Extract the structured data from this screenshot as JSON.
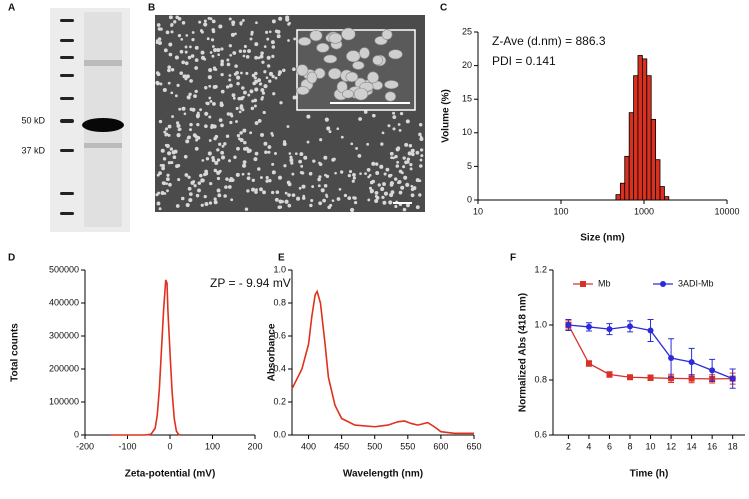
{
  "chart_data": [
    {
      "type": "gel",
      "label": "A",
      "annotations": [
        "50 kD",
        "37 kD"
      ]
    },
    {
      "type": "micrograph",
      "label": "B"
    },
    {
      "type": "histogram",
      "label": "C",
      "xlabel": "Size (nm)",
      "ylabel": "Volume (%)",
      "annotations": [
        "Z-Ave (d.nm) = 886.3",
        "PDI = 0.141"
      ],
      "bins": [
        459,
        519,
        586,
        663,
        749,
        846,
        956,
        1081,
        1221,
        1380,
        1559,
        1762,
        1991
      ],
      "values": [
        0.8,
        2.5,
        6.5,
        13,
        18.5,
        21.5,
        21,
        18.5,
        12,
        6,
        2,
        0.5
      ],
      "color": "#d9301f",
      "xscale": "log",
      "xlim": [
        10,
        10000
      ],
      "xticks": [
        10,
        100,
        1000,
        10000
      ],
      "ylim": [
        0,
        25
      ],
      "yticks": [
        0,
        5,
        10,
        15,
        20,
        25
      ]
    },
    {
      "type": "line",
      "label": "D",
      "xlabel": "Zeta-potential (mV)",
      "ylabel": "Total counts",
      "annotations": [
        "ZP = - 9.94 mV"
      ],
      "x": [
        -140,
        -60,
        -45,
        -35,
        -30,
        -25,
        -20,
        -15,
        -10,
        -7,
        -5,
        0,
        5,
        10,
        15,
        20,
        25
      ],
      "values": [
        0,
        0,
        2000,
        20000,
        60000,
        140000,
        260000,
        380000,
        470000,
        460000,
        380000,
        250000,
        130000,
        50000,
        12000,
        2000,
        0
      ],
      "color": "#e0301e",
      "xlim": [
        -200,
        200
      ],
      "xticks": [
        -200,
        -100,
        0,
        100,
        200
      ],
      "ylim": [
        0,
        500000
      ],
      "yticks": [
        0,
        100000,
        200000,
        300000,
        400000,
        500000
      ]
    },
    {
      "type": "line",
      "label": "E",
      "xlabel": "Wavelength (nm)",
      "ylabel": "Absorbance",
      "x": [
        375,
        380,
        390,
        400,
        405,
        410,
        413,
        418,
        425,
        430,
        440,
        450,
        470,
        500,
        520,
        535,
        545,
        555,
        565,
        580,
        590,
        600,
        620,
        650
      ],
      "values": [
        0.28,
        0.32,
        0.4,
        0.55,
        0.72,
        0.85,
        0.87,
        0.8,
        0.55,
        0.35,
        0.18,
        0.1,
        0.06,
        0.05,
        0.06,
        0.08,
        0.085,
        0.07,
        0.06,
        0.075,
        0.05,
        0.02,
        0.01,
        0.01
      ],
      "color": "#e0301e",
      "xlim": [
        375,
        650
      ],
      "xticks": [
        400,
        450,
        500,
        550,
        600,
        650
      ],
      "ylim": [
        0,
        1
      ],
      "yticks": [
        {
          "value": 0,
          "label": "0.0"
        },
        0.2,
        0.4,
        0.6,
        0.8,
        {
          "value": 1,
          "label": "1.0"
        }
      ]
    },
    {
      "type": "errorline",
      "label": "F",
      "xlabel": "Time (h)",
      "ylabel": "Normalized  Abs (418 nm)",
      "x": [
        2,
        4,
        6,
        8,
        10,
        12,
        14,
        16,
        18
      ],
      "series": [
        {
          "name": "Mb",
          "color": "#d9302a",
          "marker": "square",
          "values": [
            1.0,
            0.86,
            0.82,
            0.81,
            0.808,
            0.806,
            0.805,
            0.804,
            0.805
          ],
          "errors": [
            0.015,
            0.01,
            0.01,
            0.008,
            0.01,
            0.015,
            0.015,
            0.015,
            0.02
          ]
        },
        {
          "name": "3ADI-Mb",
          "color": "#2b2bd9",
          "marker": "circle",
          "values": [
            1.0,
            0.993,
            0.985,
            0.995,
            0.98,
            0.88,
            0.865,
            0.835,
            0.805
          ],
          "errors": [
            0.02,
            0.015,
            0.02,
            0.02,
            0.04,
            0.07,
            0.05,
            0.04,
            0.035
          ]
        }
      ],
      "legend": "top",
      "xlim": [
        0.5,
        19.2
      ],
      "xticks": [
        2,
        4,
        6,
        8,
        10,
        12,
        14,
        16,
        18
      ],
      "ylim": [
        0.6,
        1.2
      ],
      "yticks": [
        0.6,
        0.8,
        {
          "value": 1,
          "label": "1.0"
        },
        1.2
      ]
    }
  ]
}
